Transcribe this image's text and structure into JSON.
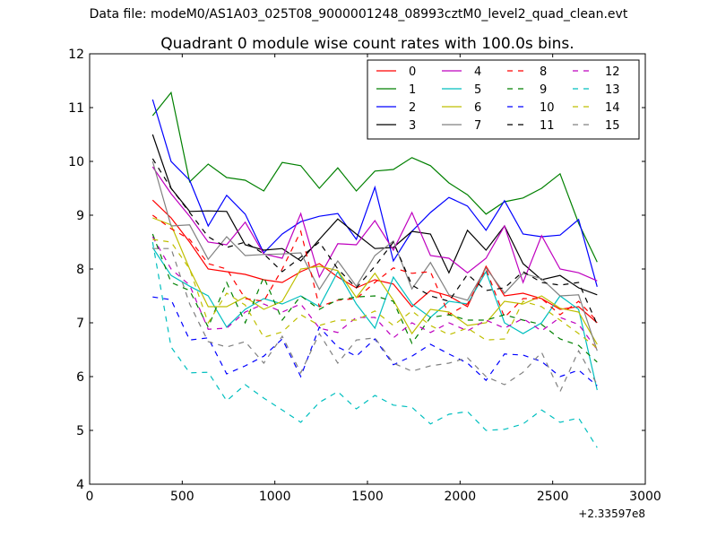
{
  "figure": {
    "suptitle": "Data file: modeM0/AS1A03_025T08_9000001248_08993cztM0_level2_quad_clean.evt"
  },
  "chart_data": {
    "type": "line",
    "title": "Quadrant 0 module wise count rates with 100.0s bins.",
    "xlabel": "",
    "ylabel": "",
    "x_offset_label": "+2.33597e8",
    "xlim": [
      0,
      3000
    ],
    "ylim": [
      4,
      12
    ],
    "xticks": [
      0,
      500,
      1000,
      1500,
      2000,
      2500,
      3000
    ],
    "yticks": [
      4,
      5,
      6,
      7,
      8,
      9,
      10,
      11,
      12
    ],
    "grid": false,
    "legend": {
      "placement": "top-right",
      "columns": 4
    },
    "x": [
      340,
      440,
      540,
      640,
      740,
      840,
      940,
      1040,
      1140,
      1240,
      1340,
      1440,
      1540,
      1640,
      1740,
      1840,
      1940,
      2040,
      2140,
      2240,
      2340,
      2440,
      2540,
      2640,
      2740
    ],
    "series": [
      {
        "name": "0",
        "color": "#ff0000",
        "dash": false,
        "values": [
          9.28,
          8.95,
          8.5,
          8.0,
          7.95,
          7.9,
          7.8,
          7.75,
          7.95,
          8.1,
          7.85,
          7.65,
          7.8,
          7.72,
          7.3,
          7.6,
          7.5,
          7.3,
          8.05,
          7.5,
          7.55,
          7.45,
          7.25,
          7.3,
          7.0
        ]
      },
      {
        "name": "1",
        "color": "#008000",
        "dash": false,
        "values": [
          10.85,
          11.28,
          9.62,
          9.95,
          9.7,
          9.65,
          9.45,
          9.98,
          9.92,
          9.5,
          9.88,
          9.45,
          9.82,
          9.85,
          10.07,
          9.92,
          9.6,
          9.38,
          9.02,
          9.25,
          9.32,
          9.5,
          9.77,
          8.85,
          8.13
        ]
      },
      {
        "name": "2",
        "color": "#0000ff",
        "dash": false,
        "values": [
          11.15,
          10.0,
          9.65,
          8.8,
          9.37,
          9.02,
          8.3,
          8.65,
          8.88,
          8.98,
          9.03,
          8.55,
          9.52,
          8.15,
          8.7,
          9.05,
          9.33,
          9.17,
          8.72,
          9.27,
          8.65,
          8.6,
          8.63,
          8.92,
          7.67
        ]
      },
      {
        "name": "3",
        "color": "#000000",
        "dash": false,
        "values": [
          10.5,
          9.5,
          9.07,
          9.08,
          9.07,
          8.45,
          8.35,
          8.38,
          8.15,
          8.55,
          8.93,
          8.65,
          8.38,
          8.4,
          8.7,
          8.65,
          7.93,
          8.72,
          8.35,
          8.8,
          8.1,
          7.8,
          7.88,
          7.65,
          7.52
        ]
      },
      {
        "name": "4",
        "color": "#bf00bf",
        "dash": false,
        "values": [
          9.9,
          9.4,
          8.98,
          8.5,
          8.45,
          8.87,
          8.28,
          8.2,
          9.03,
          7.85,
          8.47,
          8.45,
          8.9,
          8.35,
          9.05,
          8.25,
          8.2,
          7.93,
          8.2,
          8.8,
          7.75,
          8.62,
          8.0,
          7.93,
          7.78
        ]
      },
      {
        "name": "5",
        "color": "#00bfbf",
        "dash": false,
        "values": [
          8.4,
          7.88,
          7.68,
          7.5,
          6.92,
          7.25,
          7.45,
          7.35,
          7.5,
          7.3,
          7.95,
          7.35,
          6.9,
          7.85,
          7.35,
          7.1,
          7.4,
          7.35,
          7.95,
          7.0,
          6.8,
          7.0,
          7.5,
          7.25,
          5.75
        ]
      },
      {
        "name": "6",
        "color": "#bfbf00",
        "dash": false,
        "values": [
          8.95,
          8.82,
          8.0,
          7.3,
          7.3,
          7.48,
          7.25,
          7.4,
          8.0,
          8.05,
          7.97,
          7.47,
          7.92,
          7.42,
          6.8,
          7.25,
          7.2,
          6.95,
          7.0,
          7.4,
          7.35,
          7.5,
          7.27,
          7.2,
          6.6
        ]
      },
      {
        "name": "7",
        "color": "#808080",
        "dash": false,
        "values": [
          10.0,
          8.8,
          8.82,
          8.18,
          8.6,
          8.25,
          8.27,
          8.28,
          8.3,
          7.62,
          8.15,
          7.68,
          8.25,
          8.52,
          7.63,
          8.12,
          7.52,
          7.42,
          8.02,
          7.55,
          7.92,
          7.82,
          7.5,
          7.52,
          6.48
        ]
      },
      {
        "name": "8",
        "color": "#ff0000",
        "dash": true,
        "values": [
          9.0,
          8.75,
          8.55,
          8.1,
          8.0,
          7.45,
          7.4,
          8.0,
          8.7,
          7.3,
          7.42,
          7.45,
          7.75,
          8.02,
          7.92,
          7.95,
          7.15,
          7.35,
          8.0,
          7.1,
          7.45,
          7.45,
          7.15,
          7.4,
          7.03
        ]
      },
      {
        "name": "9",
        "color": "#008000",
        "dash": true,
        "values": [
          8.65,
          7.75,
          7.6,
          6.92,
          7.75,
          7.0,
          7.85,
          7.05,
          7.5,
          7.25,
          7.43,
          7.48,
          7.5,
          7.4,
          6.62,
          7.1,
          7.15,
          7.05,
          7.05,
          7.15,
          7.05,
          6.97,
          6.7,
          6.58,
          6.27
        ]
      },
      {
        "name": "10",
        "color": "#0000ff",
        "dash": true,
        "values": [
          7.48,
          7.43,
          6.68,
          6.72,
          6.05,
          6.2,
          6.38,
          6.7,
          6.0,
          6.92,
          6.55,
          6.38,
          6.7,
          6.22,
          6.38,
          6.6,
          6.42,
          6.25,
          5.93,
          6.42,
          6.4,
          6.28,
          6.0,
          6.12,
          5.83
        ]
      },
      {
        "name": "11",
        "color": "#000000",
        "dash": true,
        "values": [
          10.05,
          9.5,
          9.05,
          8.6,
          8.4,
          8.5,
          8.28,
          7.95,
          8.22,
          8.5,
          8.0,
          7.65,
          8.05,
          8.5,
          7.7,
          7.5,
          7.4,
          7.9,
          7.6,
          7.65,
          7.95,
          7.75,
          7.7,
          7.75,
          6.97
        ]
      },
      {
        "name": "12",
        "color": "#bf00bf",
        "dash": true,
        "values": [
          8.6,
          8.0,
          7.7,
          6.88,
          6.9,
          7.2,
          7.35,
          7.2,
          7.35,
          6.9,
          6.82,
          7.1,
          7.1,
          6.72,
          7.0,
          6.82,
          7.0,
          6.85,
          7.05,
          6.9,
          7.08,
          6.85,
          7.1,
          6.97,
          6.5
        ]
      },
      {
        "name": "13",
        "color": "#00bfbf",
        "dash": true,
        "values": [
          8.5,
          6.55,
          6.07,
          6.08,
          5.55,
          5.85,
          5.6,
          5.38,
          5.15,
          5.52,
          5.72,
          5.4,
          5.65,
          5.47,
          5.43,
          5.12,
          5.3,
          5.35,
          5.0,
          5.02,
          5.12,
          5.38,
          5.15,
          5.23,
          4.68
        ]
      },
      {
        "name": "14",
        "color": "#bfbf00",
        "dash": true,
        "values": [
          8.55,
          8.5,
          8.0,
          7.0,
          7.55,
          7.33,
          6.73,
          6.83,
          7.15,
          6.95,
          7.05,
          7.05,
          7.22,
          6.95,
          7.22,
          6.95,
          6.78,
          6.9,
          6.68,
          6.7,
          7.4,
          7.3,
          7.05,
          6.8,
          6.53
        ]
      },
      {
        "name": "15",
        "color": "#808080",
        "dash": true,
        "values": [
          8.38,
          8.38,
          7.35,
          6.65,
          6.55,
          6.65,
          6.25,
          6.75,
          6.07,
          6.8,
          6.25,
          6.68,
          6.72,
          6.25,
          6.1,
          6.2,
          6.25,
          6.35,
          6.0,
          5.85,
          6.08,
          6.45,
          5.72,
          6.48,
          5.85
        ]
      }
    ]
  }
}
